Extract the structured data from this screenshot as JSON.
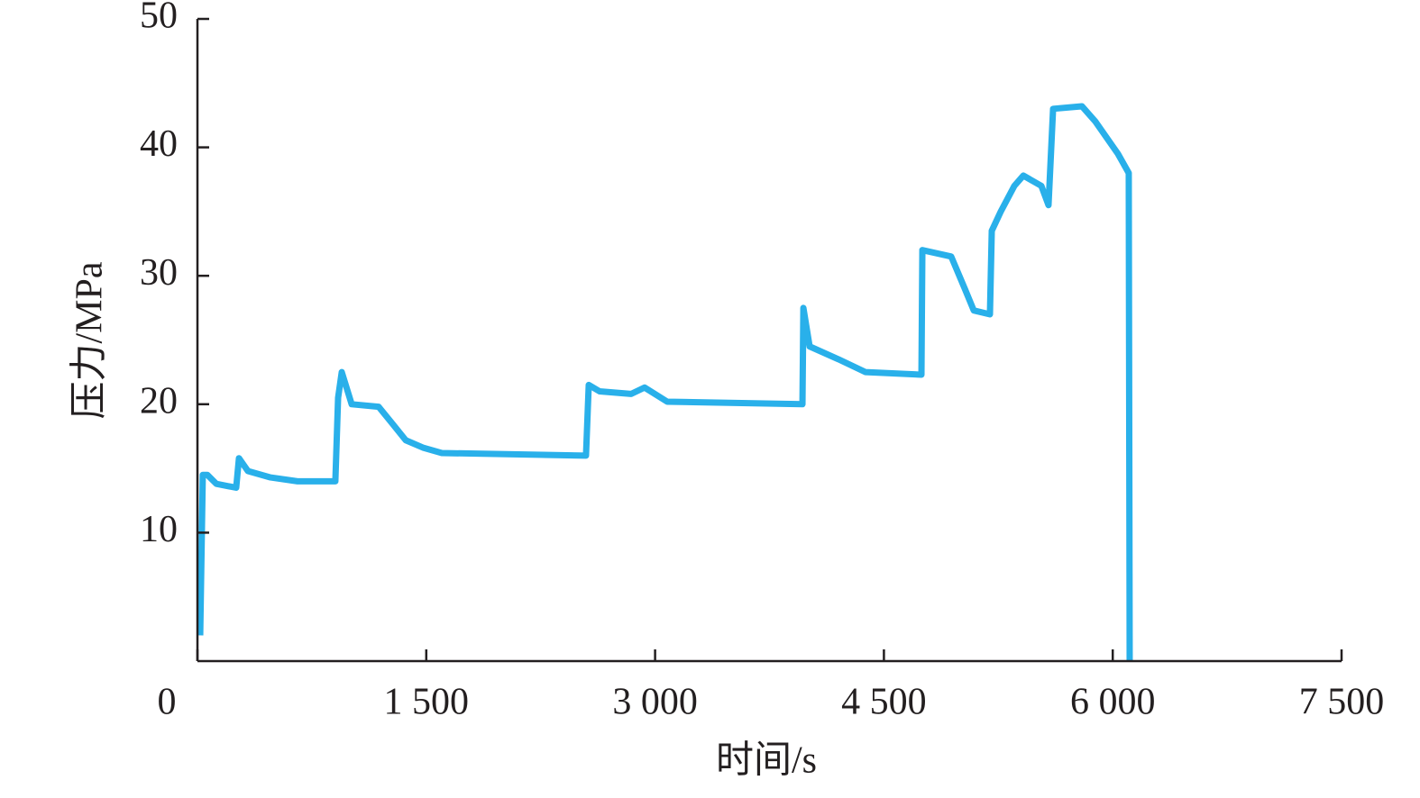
{
  "chart_data": {
    "type": "line",
    "x_label": "时间/s",
    "y_label": "压力/MPa",
    "x": [
      18,
      35,
      65,
      124,
      254,
      272,
      331,
      479,
      656,
      904,
      922,
      946,
      1011,
      1188,
      1277,
      1365,
      1483,
      1602,
      2547,
      2565,
      2636,
      2843,
      2931,
      3079,
      3966,
      3972,
      4013,
      4202,
      4379,
      4746,
      4752,
      4941,
      5030,
      5089,
      5195,
      5207,
      5266,
      5355,
      5414,
      5532,
      5579,
      5609,
      5798,
      5887,
      6034,
      6105,
      6111
    ],
    "values": [
      2,
      14.5,
      14.5,
      13.8,
      13.5,
      15.8,
      14.8,
      14.3,
      14.0,
      14.0,
      20.5,
      22.5,
      20.0,
      19.8,
      18.5,
      17.2,
      16.6,
      16.2,
      16.0,
      21.5,
      21.0,
      20.8,
      21.3,
      20.2,
      20.0,
      27.5,
      24.5,
      23.5,
      22.5,
      22.3,
      32.0,
      31.5,
      29.0,
      27.3,
      27.0,
      33.5,
      35.0,
      37.0,
      37.8,
      37.0,
      35.5,
      43.0,
      43.2,
      42.0,
      39.5,
      38.0,
      0
    ],
    "color": "#29b0ea",
    "xlim": [
      0,
      7500
    ],
    "xticks": [
      0,
      {
        "value": 1500,
        "label": "1 500"
      },
      {
        "value": 3000,
        "label": "3 000"
      },
      {
        "value": 4500,
        "label": "4 500"
      },
      {
        "value": 6000,
        "label": "6 000"
      },
      {
        "value": 7500,
        "label": "7 500"
      }
    ],
    "ylim": [
      0,
      50
    ],
    "yticks": [
      10,
      20,
      30,
      40,
      50
    ]
  }
}
